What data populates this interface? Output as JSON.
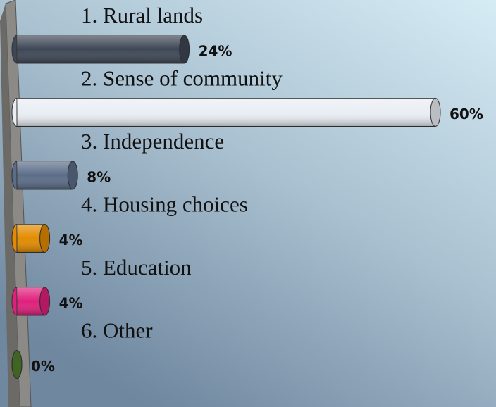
{
  "chart_data": {
    "type": "bar",
    "categories": [
      "1.  Rural lands",
      "2.  Sense of community",
      "3.  Independence",
      "4.  Housing choices",
      "5.  Education",
      "6.  Other"
    ],
    "values": [
      24,
      60,
      8,
      4,
      4,
      0
    ],
    "value_labels": [
      "24%",
      "60%",
      "8%",
      "4%",
      "4%",
      "0%"
    ],
    "colors": [
      "#3e4756",
      "#e9eef4",
      "#5b6d88",
      "#e38b00",
      "#e01f7c",
      "#4f7d2c"
    ]
  }
}
